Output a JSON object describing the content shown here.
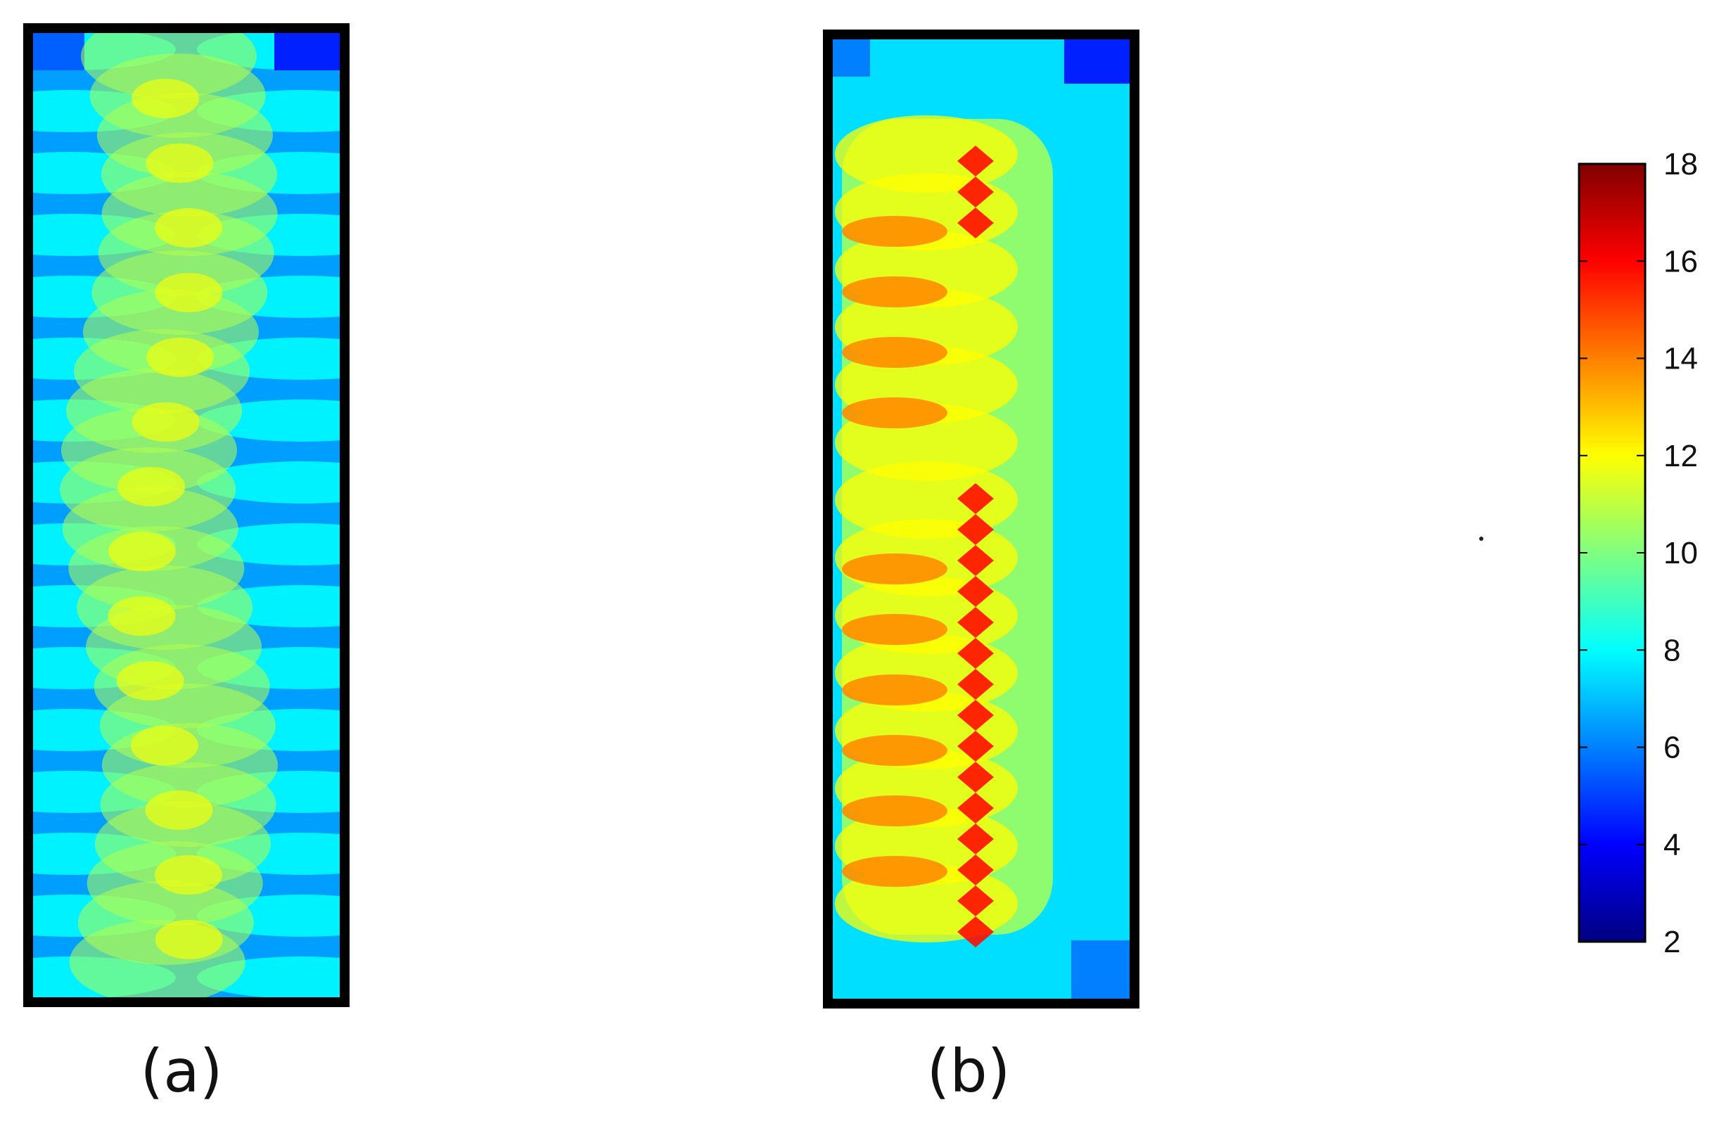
{
  "panels": [
    {
      "id": "a",
      "caption": "(a)"
    },
    {
      "id": "b",
      "caption": "(b)"
    }
  ],
  "colorbar": {
    "colormap": "jet",
    "min": 2,
    "max": 18,
    "ticks": [
      2,
      4,
      6,
      8,
      10,
      12,
      14,
      16,
      18
    ],
    "tick_labels": [
      "2",
      "4",
      "6",
      "8",
      "10",
      "12",
      "14",
      "16",
      "18"
    ]
  },
  "chart_data": [
    {
      "type": "heatmap",
      "panel": "(a)",
      "colormap": "jet",
      "value_range": [
        2,
        18
      ],
      "description_values": {
        "corners": 4.5,
        "edges": 6.5,
        "center_band": 10.8,
        "hotspots": 11.8
      }
    },
    {
      "type": "heatmap",
      "panel": "(b)",
      "colormap": "jet",
      "value_range": [
        2,
        18
      ],
      "description_values": {
        "corners": 4.5,
        "edges": 7.5,
        "center_band": 12.0,
        "hotspot_lobes": 13.8,
        "center_line_peaks": 15.8
      }
    }
  ]
}
